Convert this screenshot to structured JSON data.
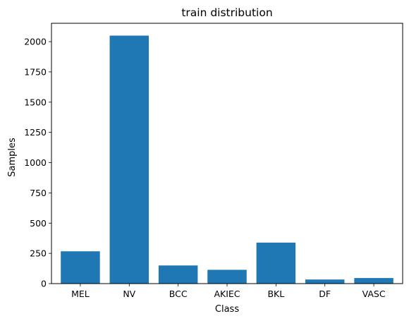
{
  "chart_data": {
    "type": "bar",
    "title": "train distribution",
    "xlabel": "Class",
    "ylabel": "Samples",
    "categories": [
      "MEL",
      "NV",
      "BCC",
      "AKIEC",
      "BKL",
      "DF",
      "VASC"
    ],
    "values": [
      267,
      2050,
      150,
      114,
      339,
      34,
      46
    ],
    "ylim": [
      0,
      2152
    ],
    "yticks": [
      0,
      250,
      500,
      750,
      1000,
      1250,
      1500,
      1750,
      2000
    ],
    "ytick_labels": [
      "0",
      "250",
      "500",
      "750",
      "1000",
      "1250",
      "1500",
      "1750",
      "2000"
    ],
    "grid": false,
    "bar_color": "#1f77b4"
  }
}
